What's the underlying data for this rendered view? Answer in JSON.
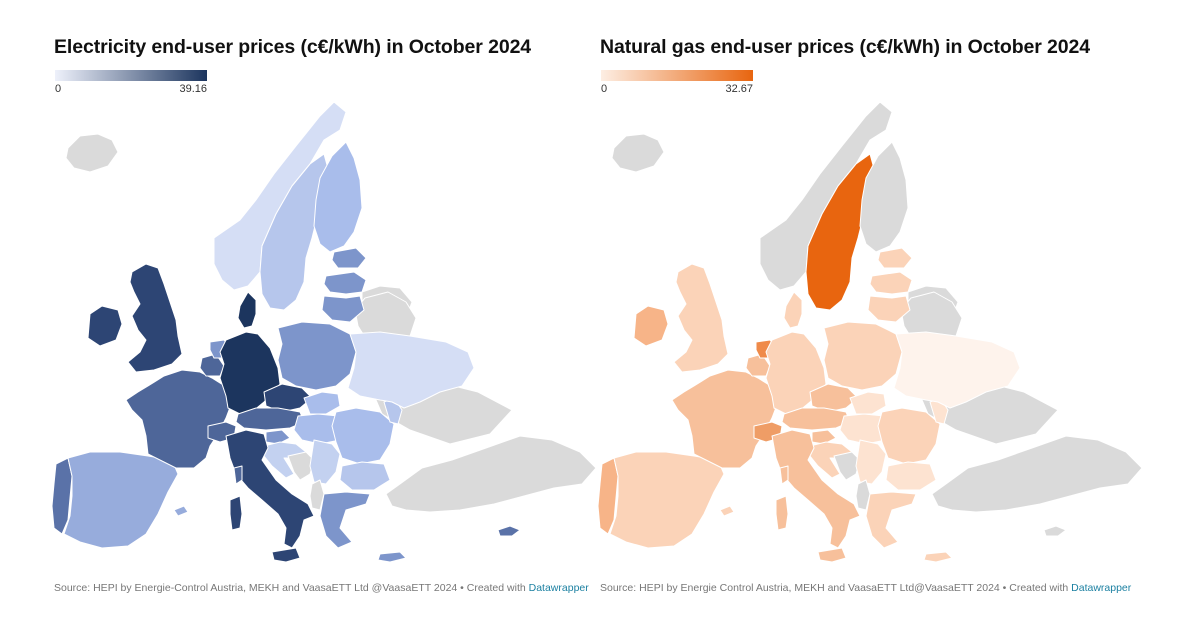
{
  "electricity": {
    "title": "Electricity end-user prices (c€/kWh) in October 2024",
    "legend": {
      "min": "0",
      "max": "39.16",
      "color_low": "#eef1fb",
      "color_high": "#1c355e"
    },
    "source": "Source: HEPI by Energie-Control Austria, MEKH and VaasaETT Ltd @VaasaETT 2024 • Created with",
    "credit": "Datawrapper"
  },
  "gas": {
    "title": "Natural gas end-user prices (c€/kWh) in October 2024",
    "legend": {
      "min": "0",
      "max": "32.67",
      "color_low": "#fdeee3",
      "color_high": "#e8650f"
    },
    "source": "Source: HEPI by Energie Control Austria, MEKH and VaasaETT Ltd@VaasaETT 2024 • Created with",
    "credit": "Datawrapper"
  },
  "no_data_color": "#dadada",
  "elec_colors": {
    "iceland": "#dadada",
    "norway": "#d5def5",
    "sweden": "#b6c6ec",
    "finland": "#a9bdeb",
    "estonia": "#7d95cb",
    "latvia": "#7d95cb",
    "lithuania": "#7d95cb",
    "russia": "#dadada",
    "belarus": "#dadada",
    "uk": "#2d4574",
    "ireland": "#2d4574",
    "portugal": "#5a72a8",
    "spain": "#97acdc",
    "france": "#4e6699",
    "belgium": "#4e6699",
    "netherlands": "#7d95cb",
    "germany": "#1c355e",
    "denmark": "#1c355e",
    "poland": "#7d95cb",
    "czechia": "#2d4574",
    "austria": "#4e6699",
    "switzerland": "#4e6699",
    "italy": "#2d4574",
    "slovakia": "#a9bdeb",
    "hungary": "#a9bdeb",
    "slovenia": "#7d95cb",
    "croatia": "#c3d1f0",
    "bosnia": "#dadada",
    "serbia": "#c3d1f0",
    "romania": "#a9bdeb",
    "bulgaria": "#b6c6ec",
    "greece": "#7d95cb",
    "ukraine": "#d5def5",
    "moldova": "#b6c6ec",
    "turkey": "#dadada",
    "albania": "#dadada",
    "cyprus": "#5a72a8"
  },
  "gas_colors": {
    "iceland": "#dadada",
    "norway": "#dadada",
    "sweden": "#e8650f",
    "finland": "#dadada",
    "estonia": "#fbd3b8",
    "latvia": "#fbd3b8",
    "lithuania": "#fbd3b8",
    "russia": "#dadada",
    "belarus": "#dadada",
    "uk": "#fbd3b8",
    "ireland": "#f7b488",
    "portugal": "#f7b488",
    "spain": "#fbd3b8",
    "france": "#f7c09b",
    "belgium": "#f7c09b",
    "netherlands": "#ef8a49",
    "germany": "#fbd3b8",
    "denmark": "#fbd3b8",
    "poland": "#fbd3b8",
    "czechia": "#f7c09b",
    "austria": "#f7c09b",
    "switzerland": "#ef9d66",
    "italy": "#f7c09b",
    "slovakia": "#fde3d1",
    "hungary": "#fde3d1",
    "slovenia": "#f7c09b",
    "croatia": "#fbd3b8",
    "bosnia": "#dadada",
    "serbia": "#fde3d1",
    "romania": "#fbd3b8",
    "bulgaria": "#fde3d1",
    "greece": "#fbd3b8",
    "ukraine": "#fef3ec",
    "moldova": "#fde3d1",
    "turkey": "#dadada",
    "albania": "#dadada",
    "cyprus": "#dadada"
  }
}
